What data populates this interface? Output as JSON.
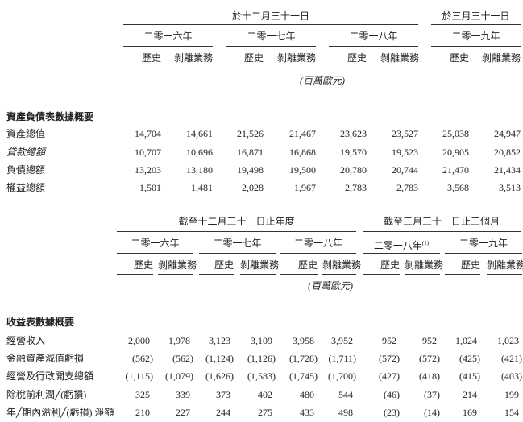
{
  "balance_sheet": {
    "period_headers": [
      "於十二月三十一日",
      "於三月三十一日"
    ],
    "years": [
      "二零一六年",
      "二零一七年",
      "二零一八年",
      "二零一九年"
    ],
    "sub_headers": [
      "歷史",
      "剝離業務"
    ],
    "unit": "(百萬歐元)",
    "section_title": "資產負債表數據概要",
    "rows": [
      {
        "label": "資產總值",
        "italic": false,
        "values": [
          "14,704",
          "14,661",
          "21,526",
          "21,467",
          "23,623",
          "23,527",
          "25,038",
          "24,947"
        ]
      },
      {
        "label": "貸款總額",
        "italic": true,
        "values": [
          "10,707",
          "10,696",
          "16,871",
          "16,868",
          "19,570",
          "19,523",
          "20,905",
          "20,852"
        ]
      },
      {
        "label": "負債總額",
        "italic": false,
        "values": [
          "13,203",
          "13,180",
          "19,498",
          "19,500",
          "20,780",
          "20,744",
          "21,470",
          "21,434"
        ]
      },
      {
        "label": "權益總額",
        "italic": false,
        "values": [
          "1,501",
          "1,481",
          "2,028",
          "1,967",
          "2,783",
          "2,783",
          "3,568",
          "3,513"
        ]
      }
    ]
  },
  "income_statement": {
    "period_headers": [
      "截至十二月三十一日止年度",
      "截至三月三十一日止三個月"
    ],
    "years": [
      "二零一六年",
      "二零一七年",
      "二零一八年",
      "二零一八年",
      "二零一九年"
    ],
    "year_footnote": "(1)",
    "sub_headers": [
      "歷史",
      "剝離業務"
    ],
    "unit": "(百萬歐元)",
    "section_title": "收益表數據概要",
    "rows": [
      {
        "label": "經營收入",
        "values": [
          "2,000",
          "1,978",
          "3,123",
          "3,109",
          "3,958",
          "3,952",
          "952",
          "952",
          "1,024",
          "1,023"
        ]
      },
      {
        "label": "金融資產減值虧損",
        "values": [
          "(562)",
          "(562)",
          "(1,124)",
          "(1,126)",
          "(1,728)",
          "(1,711)",
          "(572)",
          "(572)",
          "(425)",
          "(421)"
        ]
      },
      {
        "label": "經營及行政開支總額",
        "values": [
          "(1,115)",
          "(1,079)",
          "(1,626)",
          "(1,583)",
          "(1,745)",
          "(1,700)",
          "(427)",
          "(418)",
          "(415)",
          "(403)"
        ]
      },
      {
        "label": "除稅前利潤╱(虧損)",
        "values": [
          "325",
          "339",
          "373",
          "402",
          "480",
          "544",
          "(46)",
          "(37)",
          "214",
          "199"
        ]
      },
      {
        "label": "年╱期內溢利╱(虧損) 淨額",
        "values": [
          "210",
          "227",
          "244",
          "275",
          "433",
          "498",
          "(23)",
          "(14)",
          "169",
          "154"
        ]
      }
    ]
  }
}
